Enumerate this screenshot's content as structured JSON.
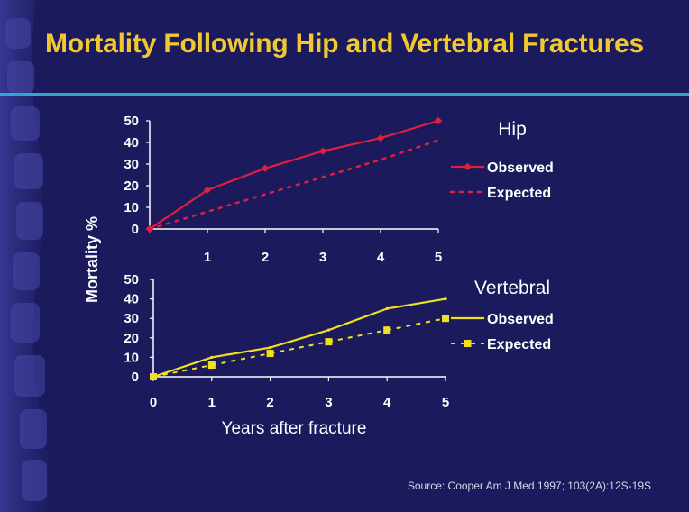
{
  "slide": {
    "title": "Mortality Following Hip and Vertebral Fractures",
    "source": "Source:  Cooper Am J Med 1997; 103(2A):12S-19S"
  },
  "colors": {
    "background": "#1a1a5c",
    "title": "#f2c830",
    "accent_rule": "#2aa9cf",
    "hip": "#e0203a",
    "vertebral": "#f0e020",
    "axis_text": "#ffffff"
  },
  "chart_data": [
    {
      "type": "line",
      "title": "Hip",
      "ylabel": "Mortality %",
      "xlabel": "",
      "x": [
        0,
        1,
        2,
        3,
        4,
        5
      ],
      "x_tick_labels": [
        "",
        "1",
        "2",
        "3",
        "4",
        "5"
      ],
      "y_ticks": [
        "0",
        "10",
        "20",
        "30",
        "40",
        "50"
      ],
      "ylim": [
        0,
        50
      ],
      "series": [
        {
          "name": "Observed",
          "values": [
            0,
            18,
            28,
            36,
            42,
            50
          ],
          "style": "solid-diamond"
        },
        {
          "name": "Expected",
          "values": [
            0,
            8,
            16,
            24,
            32,
            41
          ],
          "style": "dotted"
        }
      ]
    },
    {
      "type": "line",
      "title": "Vertebral",
      "xlabel": "Years after fracture",
      "ylabel": "Mortality %",
      "x": [
        0,
        1,
        2,
        3,
        4,
        5
      ],
      "x_tick_labels": [
        "0",
        "1",
        "2",
        "3",
        "4",
        "5"
      ],
      "y_ticks": [
        "0",
        "10",
        "20",
        "30",
        "40",
        "50"
      ],
      "ylim": [
        0,
        50
      ],
      "series": [
        {
          "name": "Observed",
          "values": [
            0,
            10,
            15,
            24,
            35,
            40
          ],
          "style": "solid"
        },
        {
          "name": "Expected",
          "values": [
            0,
            6,
            12,
            18,
            24,
            30
          ],
          "style": "dashed-square"
        }
      ]
    }
  ]
}
